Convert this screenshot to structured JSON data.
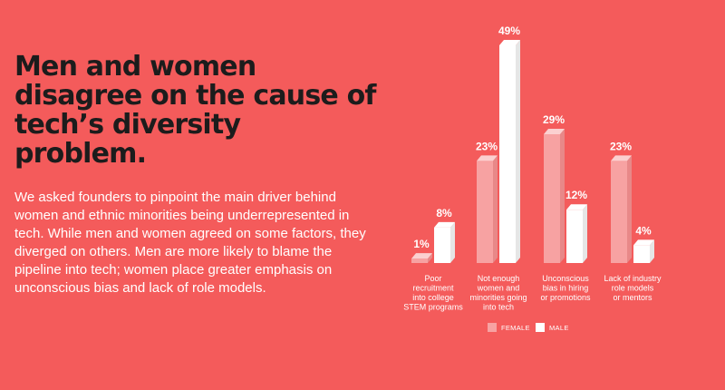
{
  "headline": "Men and women disagree on the cause of tech’s diversity problem.",
  "body": "We asked founders to pinpoint the main driver behind women and ethnic minorities being underrepresented in tech. While men and women agreed on some factors, they diverged on others. Men are more likely to blame the pipeline into tech; women place greater emphasis on unconscious bias and lack of role models.",
  "colors": {
    "background": "#f45b5b",
    "female_front": "#f7a2a2",
    "female_side": "#e88888",
    "female_top": "#fbd0d0",
    "male_front": "#ffffff",
    "male_side": "#e6e6e6",
    "male_top": "#ffffff"
  },
  "chart_data": {
    "type": "bar",
    "categories": [
      [
        "Poor",
        "recruitment",
        "into college",
        "STEM programs"
      ],
      [
        "Not enough",
        "women and",
        "minorities going",
        "into tech"
      ],
      [
        "Unconscious",
        "bias in hiring",
        "or promotions"
      ],
      [
        "Lack of industry",
        "role models",
        "or mentors"
      ]
    ],
    "series": [
      {
        "name": "FEMALE",
        "values": [
          1,
          23,
          29,
          23
        ],
        "labels": [
          "1%",
          "23%",
          "29%",
          "23%"
        ]
      },
      {
        "name": "MALE",
        "values": [
          8,
          49,
          12,
          4
        ],
        "labels": [
          "8%",
          "49%",
          "12%",
          "4%"
        ]
      }
    ],
    "ylim": [
      0,
      49
    ],
    "legend": "bottom"
  }
}
